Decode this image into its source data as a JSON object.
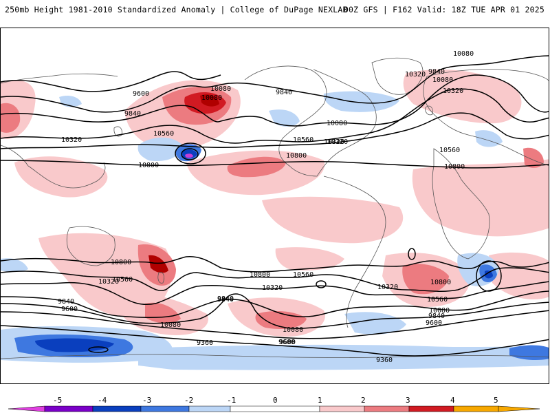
{
  "header": {
    "left": "250mb Height 1981-2010 Standardized Anomaly | College of DuPage NEXLAB",
    "right": "00Z GFS | F162 Valid: 18Z TUE APR 01 2025"
  },
  "colors": {
    "neg5": "#e040e0",
    "neg4": "#7a00c8",
    "neg3": "#0a3fbe",
    "neg2": "#3e78e0",
    "neg1": "#bcd6f6",
    "pos1": "#f9c9cb",
    "pos2": "#ec7b80",
    "pos3": "#d11a22",
    "pos4": "#b00000",
    "pos5": "#f7a800"
  },
  "colorbar": {
    "ticks": [
      "-5",
      "-4",
      "-3",
      "-2",
      "-1",
      "0",
      "1",
      "2",
      "3",
      "4",
      "5"
    ]
  },
  "contour_labels": [
    "9600",
    "9840",
    "10080",
    "10320",
    "10560",
    "10800",
    "9840",
    "10080",
    "10320",
    "9840",
    "10080",
    "10320",
    "10080",
    "10320",
    "10560",
    "10800",
    "10080",
    "10320",
    "10560",
    "10800",
    "9840",
    "9600",
    "9360",
    "9840",
    "9600",
    "10080",
    "10320",
    "10560",
    "10800",
    "10800",
    "10560",
    "10320",
    "9840",
    "10800",
    "10560",
    "10320",
    "10080",
    "9840",
    "9600",
    "10080",
    "9600",
    "9360"
  ]
}
